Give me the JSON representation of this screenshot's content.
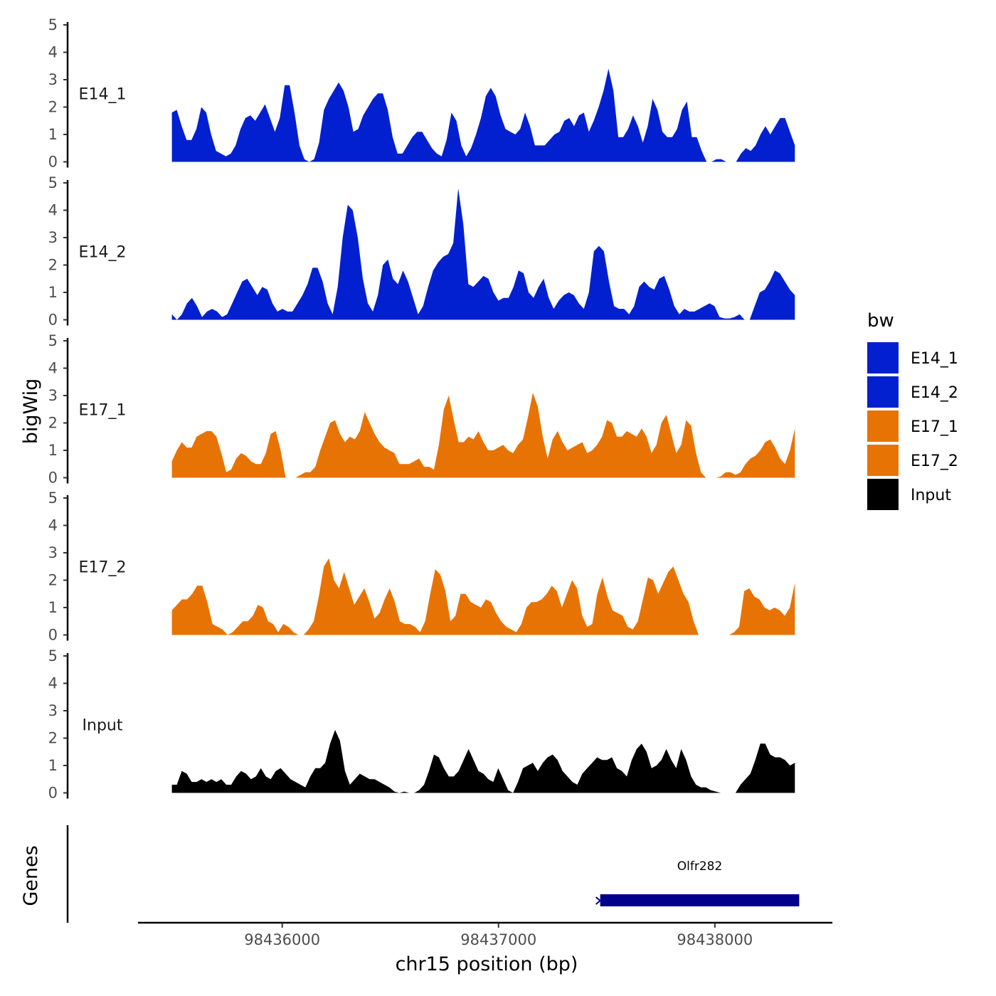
{
  "chart_data": {
    "type": "area",
    "ylabel": "bigWig",
    "xlabel": "chr15 position (bp)",
    "ylim": [
      0,
      5
    ],
    "y_ticks": [
      "0",
      "1",
      "2",
      "3",
      "4",
      "5"
    ],
    "xlim": [
      98435340,
      98438540
    ],
    "x_ticks": [
      {
        "value": 98436000,
        "label": "98436000"
      },
      {
        "value": 98437000,
        "label": "98437000"
      },
      {
        "value": 98438000,
        "label": "98438000"
      }
    ],
    "x_start": 98435490,
    "x_end": 98438370,
    "genes_label": "Genes",
    "legend": {
      "title": "bw",
      "entries": [
        "E14_1",
        "E14_2",
        "E17_1",
        "E17_2",
        "Input"
      ]
    },
    "series": [
      {
        "name": "E14_1",
        "color": "#0220CF",
        "values": [
          1.8,
          1.9,
          1.3,
          0.8,
          0.8,
          1.2,
          2.0,
          1.8,
          1.0,
          0.4,
          0.3,
          0.2,
          0.3,
          0.6,
          1.2,
          1.6,
          1.7,
          1.5,
          1.8,
          2.1,
          1.6,
          1.1,
          1.6,
          2.8,
          2.8,
          1.8,
          0.6,
          0.1,
          0,
          0.1,
          0.7,
          1.9,
          2.3,
          2.6,
          2.9,
          2.6,
          2.0,
          1.1,
          1.2,
          1.7,
          2.0,
          2.3,
          2.5,
          2.5,
          1.9,
          0.9,
          0.3,
          0.3,
          0.6,
          0.9,
          1.1,
          1.1,
          0.8,
          0.5,
          0.3,
          0.2,
          0.8,
          1.8,
          1.5,
          0.6,
          0.2,
          0.5,
          1.0,
          1.6,
          2.4,
          2.7,
          2.4,
          1.7,
          1.2,
          1.1,
          1.0,
          1.2,
          1.8,
          1.3,
          0.6,
          0.6,
          0.6,
          0.8,
          1.0,
          1.1,
          1.5,
          1.6,
          1.3,
          1.7,
          1.8,
          1.1,
          1.5,
          2.0,
          2.6,
          3.4,
          2.6,
          0.9,
          0.9,
          1.2,
          1.7,
          1.3,
          0.7,
          1.3,
          2.3,
          1.9,
          1.1,
          0.9,
          0.9,
          1.2,
          1.9,
          2.2,
          0.9,
          0.9,
          0.4,
          0,
          0,
          0.1,
          0.1,
          0,
          0,
          0,
          0.3,
          0.5,
          0.4,
          0.6,
          1.0,
          1.3,
          1.0,
          1.3,
          1.6,
          1.6,
          1.1,
          0.6
        ]
      },
      {
        "name": "E14_2",
        "color": "#0220CF",
        "values": [
          0.2,
          0.0,
          0.2,
          0.6,
          0.8,
          0.5,
          0.1,
          0.3,
          0.4,
          0.3,
          0.1,
          0.2,
          0.6,
          1.0,
          1.4,
          1.5,
          1.2,
          0.9,
          1.2,
          1.1,
          0.6,
          0.3,
          0.4,
          0.3,
          0.3,
          0.6,
          0.9,
          1.3,
          1.9,
          1.9,
          1.4,
          0.6,
          0.2,
          1.2,
          3.0,
          4.2,
          4.0,
          3.0,
          1.5,
          0.6,
          0.3,
          0.9,
          2.0,
          2.2,
          1.5,
          1.3,
          1.8,
          1.4,
          0.8,
          0.2,
          0.5,
          1.2,
          1.8,
          2.1,
          2.3,
          2.4,
          2.8,
          4.8,
          3.5,
          1.3,
          1.2,
          1.4,
          1.6,
          1.5,
          1.0,
          0.7,
          0.8,
          0.8,
          1.2,
          1.8,
          1.7,
          1.0,
          0.8,
          1.2,
          1.5,
          0.8,
          0.4,
          0.7,
          0.9,
          1.0,
          0.9,
          0.6,
          0.4,
          1.0,
          2.5,
          2.7,
          2.5,
          1.4,
          0.5,
          0.4,
          0.4,
          0.2,
          0.5,
          1.2,
          1.4,
          1.2,
          1.1,
          1.5,
          1.6,
          1.1,
          0.5,
          0.2,
          0.4,
          0.3,
          0.3,
          0.4,
          0.5,
          0.6,
          0.5,
          0.1,
          0.05,
          0.05,
          0.1,
          0.2,
          0,
          0,
          0.5,
          1.0,
          1.1,
          1.4,
          1.8,
          1.7,
          1.4,
          1.1,
          0.9
        ]
      },
      {
        "name": "E17_1",
        "color": "#E87305",
        "values": [
          0.6,
          1.0,
          1.3,
          1.1,
          1.1,
          1.5,
          1.6,
          1.7,
          1.7,
          1.5,
          0.9,
          0.2,
          0.3,
          0.7,
          0.9,
          0.8,
          0.6,
          0.5,
          0.5,
          0.9,
          1.6,
          1.7,
          1.0,
          0,
          0,
          0,
          0.1,
          0.2,
          0.2,
          0.4,
          1.0,
          1.5,
          2.0,
          2.1,
          1.6,
          1.3,
          1.5,
          1.4,
          1.7,
          2.4,
          2.0,
          1.6,
          1.3,
          1.1,
          1.0,
          0.9,
          0.5,
          0.5,
          0.5,
          0.6,
          0.7,
          0.4,
          0.4,
          0.3,
          1.2,
          2.5,
          3.0,
          2.1,
          1.3,
          1.3,
          1.5,
          1.4,
          1.7,
          1.3,
          1.0,
          1.0,
          1.1,
          1.2,
          1.0,
          0.9,
          1.2,
          1.4,
          2.2,
          3.1,
          2.6,
          1.5,
          0.7,
          1.4,
          1.7,
          1.3,
          1.0,
          1.1,
          1.2,
          1.3,
          0.9,
          1.0,
          1.2,
          1.5,
          2.1,
          2.0,
          1.5,
          1.5,
          1.7,
          1.6,
          1.5,
          1.8,
          1.5,
          0.9,
          1.2,
          2.0,
          2.3,
          1.6,
          0.9,
          1.2,
          2.1,
          1.9,
          0.9,
          0.2,
          0,
          0,
          0,
          0.05,
          0.2,
          0.2,
          0.1,
          0.2,
          0.5,
          0.7,
          0.8,
          1.0,
          1.3,
          1.4,
          1.1,
          0.7,
          0.5,
          1.0,
          1.8
        ]
      },
      {
        "name": "E17_2",
        "color": "#E87305",
        "values": [
          0.9,
          1.1,
          1.3,
          1.3,
          1.5,
          1.8,
          1.8,
          1.2,
          0.4,
          0.3,
          0.2,
          0,
          0.1,
          0.3,
          0.5,
          0.5,
          0.7,
          1.1,
          1.0,
          0.5,
          0.4,
          0.1,
          0.4,
          0.3,
          0.1,
          0,
          0,
          0.2,
          0.5,
          1.4,
          2.5,
          2.8,
          2.0,
          1.7,
          2.3,
          1.7,
          1.1,
          1.4,
          1.7,
          1.2,
          0.6,
          0.8,
          1.3,
          1.7,
          1.2,
          0.5,
          0.4,
          0.4,
          0.3,
          0.1,
          0.5,
          1.5,
          2.4,
          2.2,
          1.6,
          0.5,
          0.7,
          1.5,
          1.5,
          1.2,
          1.1,
          1.0,
          1.3,
          1.2,
          0.8,
          0.5,
          0.3,
          0.2,
          0.1,
          0.4,
          1.0,
          1.2,
          1.2,
          1.3,
          1.5,
          1.8,
          1.6,
          1.0,
          1.5,
          2.0,
          1.7,
          0.7,
          0.3,
          0.4,
          1.5,
          2.1,
          1.4,
          0.9,
          0.8,
          0.7,
          0.3,
          0.2,
          0.5,
          1.3,
          2.1,
          2.0,
          1.5,
          1.9,
          2.3,
          2.5,
          2.0,
          1.5,
          1.2,
          0.5,
          0,
          0,
          0,
          0,
          0,
          0,
          0,
          0.1,
          0.3,
          1.6,
          1.7,
          1.4,
          1.3,
          1.0,
          0.9,
          1.0,
          0.9,
          0.7,
          1.0,
          1.9
        ]
      },
      {
        "name": "Input",
        "color": "#000000",
        "values": [
          0.3,
          0.3,
          0.8,
          0.7,
          0.4,
          0.4,
          0.5,
          0.4,
          0.5,
          0.4,
          0.5,
          0.3,
          0.3,
          0.6,
          0.8,
          0.7,
          0.5,
          0.6,
          0.9,
          0.6,
          0.5,
          0.8,
          0.9,
          0.7,
          0.5,
          0.4,
          0.3,
          0.2,
          0.6,
          0.9,
          0.9,
          1.1,
          1.8,
          2.3,
          1.9,
          0.8,
          0.3,
          0.5,
          0.7,
          0.6,
          0.5,
          0.5,
          0.4,
          0.3,
          0.2,
          0.05,
          0,
          0.05,
          0,
          0,
          0.1,
          0.3,
          0.8,
          1.4,
          1.3,
          0.9,
          0.6,
          0.6,
          0.8,
          1.2,
          1.6,
          1.2,
          0.8,
          0.7,
          0.5,
          0.4,
          0.9,
          0.5,
          0.1,
          0,
          0.4,
          0.9,
          1.0,
          1.1,
          0.8,
          1.1,
          1.3,
          1.4,
          1.2,
          0.8,
          0.6,
          0.4,
          0.3,
          0.7,
          0.9,
          1.1,
          1.3,
          1.2,
          1.2,
          1.3,
          0.9,
          0.8,
          0.6,
          1.2,
          1.6,
          1.8,
          1.5,
          0.9,
          1.0,
          1.2,
          1.6,
          1.2,
          0.9,
          1.6,
          1.2,
          0.6,
          0.3,
          0.2,
          0.2,
          0.1,
          0.05,
          0,
          0,
          0,
          0,
          0.3,
          0.5,
          0.7,
          1.2,
          1.8,
          1.8,
          1.4,
          1.3,
          1.3,
          1.2,
          1.0,
          1.1
        ]
      }
    ],
    "gene": {
      "name": "Olfr282",
      "start": 98437470,
      "end": 98438390,
      "color": "#00008B"
    }
  }
}
